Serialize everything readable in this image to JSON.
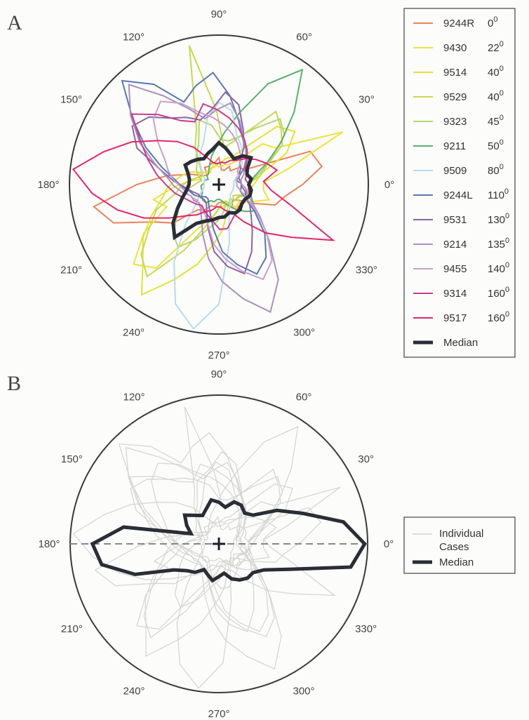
{
  "figure": {
    "panel_a_label": "A",
    "panel_b_label": "B"
  },
  "chart_data": [
    {
      "type": "polar-line",
      "panel": "A",
      "angle_unit": "degrees",
      "tick_labels": [
        "0°",
        "30°",
        "60°",
        "90°",
        "120°",
        "150°",
        "180°",
        "210°",
        "240°",
        "270°",
        "300°",
        "330°"
      ],
      "legend": {
        "position": "right"
      },
      "series": [
        {
          "name": "9244R",
          "angle": "0",
          "color": "#e8845a",
          "r": [
            0.56,
            0.7,
            0.65,
            0.2,
            0.18,
            0.12,
            0.14,
            0.1,
            0.1,
            0.18,
            0.15,
            0.15,
            0.14,
            0.15,
            0.1,
            0.12,
            0.2,
            0.35,
            0.55,
            0.85,
            0.75,
            0.5,
            0.4,
            0.22,
            0.2,
            0.15,
            0.15,
            0.12,
            0.12,
            0.14,
            0.18,
            0.14,
            0.16,
            0.25,
            0.4,
            0.45
          ],
          "rot": 0
        },
        {
          "name": "9430",
          "angle": "22",
          "color": "#f0e23c",
          "r": [
            0.3,
            0.48,
            0.9,
            0.45,
            0.4,
            0.2,
            0.15,
            0.14,
            0.12,
            0.12,
            0.15,
            0.12,
            0.12,
            0.1,
            0.14,
            0.15,
            0.12,
            0.2,
            0.3,
            0.45,
            0.38,
            0.6,
            0.78,
            0.7,
            0.35,
            0.25,
            0.2,
            0.15,
            0.15,
            0.12,
            0.2,
            0.18,
            0.2,
            0.25,
            0.35,
            0.3
          ],
          "rot": 3
        },
        {
          "name": "9514",
          "angle": "40",
          "color": "#e2e238",
          "r": [
            0.25,
            0.3,
            0.5,
            0.62,
            0.55,
            0.3,
            0.2,
            0.18,
            0.15,
            0.14,
            0.12,
            0.12,
            0.1,
            0.12,
            0.14,
            0.2,
            0.25,
            0.3,
            0.35,
            0.4,
            0.5,
            0.62,
            0.72,
            0.9,
            0.7,
            0.55,
            0.4,
            0.3,
            0.2,
            0.15,
            0.18,
            0.2,
            0.15,
            0.18,
            0.2,
            0.22
          ],
          "rot": 5
        },
        {
          "name": "9529",
          "angle": "40",
          "color": "#c8d850",
          "r": [
            0.2,
            0.28,
            0.35,
            0.5,
            0.56,
            0.62,
            0.4,
            0.3,
            0.25,
            0.5,
            0.95,
            0.4,
            0.3,
            0.2,
            0.15,
            0.12,
            0.15,
            0.2,
            0.25,
            0.3,
            0.45,
            0.55,
            0.7,
            0.78,
            0.5,
            0.3,
            0.2,
            0.15,
            0.12,
            0.12,
            0.15,
            0.15,
            0.12,
            0.15,
            0.2,
            0.2
          ],
          "rot": 2
        },
        {
          "name": "9323",
          "angle": "45",
          "color": "#b8d470",
          "r": [
            0.22,
            0.3,
            0.4,
            0.55,
            0.6,
            0.45,
            0.35,
            0.3,
            0.3,
            0.4,
            0.45,
            0.3,
            0.25,
            0.2,
            0.18,
            0.15,
            0.12,
            0.15,
            0.2,
            0.25,
            0.3,
            0.35,
            0.45,
            0.5,
            0.4,
            0.3,
            0.25,
            0.2,
            0.15,
            0.15,
            0.12,
            0.15,
            0.15,
            0.18,
            0.2,
            0.2
          ],
          "rot": 7
        },
        {
          "name": "9211",
          "angle": "50",
          "color": "#5cb06c",
          "r": [
            0.2,
            0.25,
            0.35,
            0.5,
            0.7,
            0.95,
            0.75,
            0.5,
            0.35,
            0.25,
            0.2,
            0.15,
            0.12,
            0.1,
            0.1,
            0.08,
            0.1,
            0.1,
            0.12,
            0.12,
            0.12,
            0.14,
            0.15,
            0.15,
            0.12,
            0.12,
            0.1,
            0.1,
            0.12,
            0.15,
            0.2,
            0.25,
            0.3,
            0.25,
            0.22,
            0.2
          ],
          "rot": 4
        },
        {
          "name": "9509",
          "angle": "80",
          "color": "#b8dce8",
          "r": [
            0.1,
            0.1,
            0.12,
            0.15,
            0.2,
            0.25,
            0.3,
            0.35,
            0.5,
            0.55,
            0.45,
            0.3,
            0.25,
            0.2,
            0.15,
            0.12,
            0.1,
            0.1,
            0.1,
            0.1,
            0.12,
            0.15,
            0.2,
            0.35,
            0.6,
            0.85,
            0.98,
            0.8,
            0.4,
            0.2,
            0.15,
            0.12,
            0.1,
            0.1,
            0.1,
            0.1
          ],
          "rot": 0
        },
        {
          "name": "9244L",
          "angle": "110",
          "color": "#5878b4",
          "r": [
            0.15,
            0.12,
            0.15,
            0.2,
            0.25,
            0.3,
            0.35,
            0.45,
            0.6,
            0.75,
            0.68,
            0.6,
            0.8,
            0.95,
            0.72,
            0.55,
            0.4,
            0.3,
            0.25,
            0.2,
            0.18,
            0.15,
            0.12,
            0.12,
            0.15,
            0.2,
            0.3,
            0.45,
            0.55,
            0.65,
            0.58,
            0.45,
            0.3,
            0.2,
            0.15,
            0.15
          ],
          "rot": 3
        },
        {
          "name": "9531",
          "angle": "130",
          "color": "#8c64a4",
          "r": [
            0.15,
            0.14,
            0.15,
            0.18,
            0.2,
            0.3,
            0.4,
            0.55,
            0.62,
            0.5,
            0.45,
            0.5,
            0.55,
            0.65,
            0.7,
            0.6,
            0.4,
            0.3,
            0.22,
            0.18,
            0.15,
            0.15,
            0.14,
            0.15,
            0.2,
            0.3,
            0.45,
            0.55,
            0.62,
            0.5,
            0.38,
            0.3,
            0.25,
            0.2,
            0.18,
            0.15
          ],
          "rot": 6
        },
        {
          "name": "9214",
          "angle": "135",
          "color": "#a890c0",
          "r": [
            0.15,
            0.15,
            0.18,
            0.2,
            0.25,
            0.3,
            0.35,
            0.45,
            0.55,
            0.5,
            0.45,
            0.55,
            0.7,
            0.9,
            0.75,
            0.6,
            0.45,
            0.35,
            0.3,
            0.25,
            0.2,
            0.2,
            0.18,
            0.2,
            0.25,
            0.35,
            0.5,
            0.65,
            0.78,
            0.92,
            0.75,
            0.5,
            0.35,
            0.25,
            0.2,
            0.18
          ],
          "rot": 2
        },
        {
          "name": "9455",
          "angle": "140",
          "color": "#c8a0c8",
          "r": [
            0.12,
            0.12,
            0.15,
            0.15,
            0.2,
            0.25,
            0.3,
            0.35,
            0.4,
            0.45,
            0.5,
            0.6,
            0.68,
            0.62,
            0.5,
            0.4,
            0.35,
            0.3,
            0.25,
            0.22,
            0.2,
            0.18,
            0.18,
            0.2,
            0.22,
            0.28,
            0.4,
            0.5,
            0.6,
            0.7,
            0.62,
            0.45,
            0.3,
            0.2,
            0.15,
            0.12
          ],
          "rot": 5
        },
        {
          "name": "9314",
          "angle": "160",
          "color": "#c83c8c",
          "r": [
            0.2,
            0.18,
            0.2,
            0.2,
            0.25,
            0.3,
            0.35,
            0.4,
            0.45,
            0.5,
            0.55,
            0.45,
            0.5,
            0.62,
            0.75,
            0.6,
            0.5,
            0.42,
            0.35,
            0.3,
            0.25,
            0.22,
            0.2,
            0.18,
            0.2,
            0.22,
            0.25,
            0.3,
            0.3,
            0.25,
            0.22,
            0.2,
            0.2,
            0.2,
            0.22,
            0.2
          ],
          "rot": 1
        },
        {
          "name": "9517",
          "angle": "160",
          "color": "#e0286c",
          "r": [
            0.3,
            0.4,
            0.35,
            0.3,
            0.25,
            0.2,
            0.18,
            0.15,
            0.15,
            0.14,
            0.15,
            0.2,
            0.3,
            0.4,
            0.5,
            0.65,
            0.8,
            0.98,
            0.85,
            0.7,
            0.55,
            0.4,
            0.3,
            0.25,
            0.2,
            0.18,
            0.15,
            0.15,
            0.18,
            0.2,
            0.3,
            0.45,
            0.6,
            0.85,
            0.5,
            0.35
          ],
          "rot": 4
        },
        {
          "name": "Median",
          "color": "#2b2d36",
          "median": true,
          "r": [
            0.2,
            0.22,
            0.2,
            0.22,
            0.28,
            0.25,
            0.2,
            0.22,
            0.25,
            0.28,
            0.24,
            0.22,
            0.2,
            0.22,
            0.24,
            0.26,
            0.22,
            0.2,
            0.2,
            0.22,
            0.26,
            0.32,
            0.4,
            0.46,
            0.3,
            0.26,
            0.24,
            0.22,
            0.22,
            0.2,
            0.22,
            0.22,
            0.2,
            0.2,
            0.22,
            0.22
          ],
          "rot": 0
        }
      ]
    },
    {
      "type": "polar-line",
      "panel": "B",
      "angle_unit": "degrees",
      "tick_labels": [
        "0°",
        "30°",
        "60°",
        "90°",
        "120°",
        "150°",
        "180°",
        "210°",
        "240°",
        "270°",
        "300°",
        "330°"
      ],
      "reference_line": "0°–180° dashed",
      "legend": {
        "position": "right",
        "entries": [
          "Individual Cases",
          "Median"
        ]
      },
      "individual_cases_color": "#d6d6d6",
      "median_color": "#2b2d36",
      "median_r": [
        0.98,
        0.85,
        0.6,
        0.45,
        0.3,
        0.27,
        0.3,
        0.3,
        0.25,
        0.28,
        0.3,
        0.25,
        0.22,
        0.25,
        0.3,
        0.25,
        0.2,
        0.65,
        0.85,
        0.8,
        0.6,
        0.35,
        0.28,
        0.25,
        0.2,
        0.22,
        0.25,
        0.22,
        0.2,
        0.25,
        0.28,
        0.3,
        0.3,
        0.35,
        0.5,
        0.9
      ]
    }
  ],
  "legend_b": {
    "line1": "Individual",
    "line2": "Cases",
    "median": "Median"
  }
}
